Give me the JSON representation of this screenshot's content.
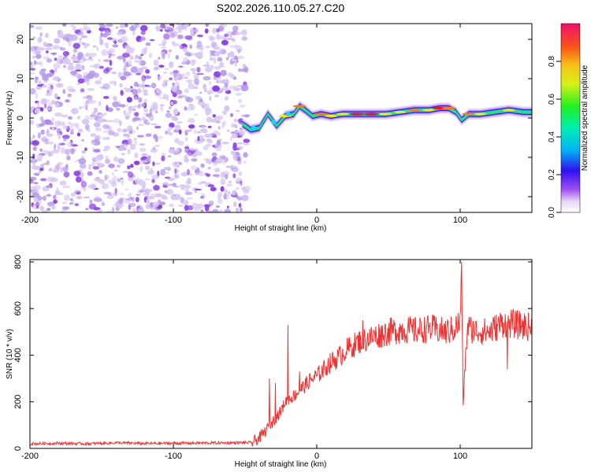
{
  "title": "S202.2026.110.05.27.C20",
  "colors": {
    "snr_line": "#ee3333",
    "scatter_light": "#d9c8f2",
    "scatter_mid": "#b79be9",
    "scatter_dark": "#8a3fe0",
    "band_colors": [
      "#e4d2f7",
      "#b890ef",
      "#3a10e6",
      "#12d7f2",
      "#2be84a",
      "#f3e324",
      "#f07e1a",
      "#e81717"
    ]
  },
  "chart_data": [
    {
      "type": "heatmap",
      "title": "S202.2026.110.05.27.C20",
      "xlabel": "Height of straight line (km)",
      "ylabel": "Frequency (Hz)",
      "xlim": [
        -200,
        150
      ],
      "ylim": [
        -24,
        24
      ],
      "xticks": [
        -200,
        -100,
        0,
        100
      ],
      "yticks": [
        -20,
        -10,
        0,
        10,
        20
      ],
      "noise_region": {
        "x_from": -200,
        "x_to": -48,
        "frequency_range": [
          -24,
          24
        ]
      },
      "signal_band": [
        {
          "x": -52,
          "frequency": -1.5,
          "amplitude": 0.2
        },
        {
          "x": -46,
          "frequency": -3.0,
          "amplitude": 0.35
        },
        {
          "x": -40,
          "frequency": -2.5,
          "amplitude": 0.3
        },
        {
          "x": -34,
          "frequency": 1.0,
          "amplitude": 0.25
        },
        {
          "x": -28,
          "frequency": -2.0,
          "amplitude": 0.3
        },
        {
          "x": -22,
          "frequency": 0.5,
          "amplitude": 0.7
        },
        {
          "x": -16,
          "frequency": 1.0,
          "amplitude": 0.45
        },
        {
          "x": -12,
          "frequency": 3.0,
          "amplitude": 0.75
        },
        {
          "x": -8,
          "frequency": 2.0,
          "amplitude": 0.5
        },
        {
          "x": -3,
          "frequency": 0.5,
          "amplitude": 0.55
        },
        {
          "x": 3,
          "frequency": 1.0,
          "amplitude": 0.85
        },
        {
          "x": 10,
          "frequency": 0.5,
          "amplitude": 0.65
        },
        {
          "x": 18,
          "frequency": 1.0,
          "amplitude": 0.6
        },
        {
          "x": 28,
          "frequency": 1.0,
          "amplitude": 0.9
        },
        {
          "x": 38,
          "frequency": 1.0,
          "amplitude": 0.95
        },
        {
          "x": 48,
          "frequency": 1.0,
          "amplitude": 0.7
        },
        {
          "x": 58,
          "frequency": 1.5,
          "amplitude": 0.6
        },
        {
          "x": 68,
          "frequency": 2.0,
          "amplitude": 0.8
        },
        {
          "x": 78,
          "frequency": 2.0,
          "amplitude": 0.65
        },
        {
          "x": 86,
          "frequency": 2.5,
          "amplitude": 0.95
        },
        {
          "x": 92,
          "frequency": 2.5,
          "amplitude": 0.85
        },
        {
          "x": 97,
          "frequency": 1.5,
          "amplitude": 0.55
        },
        {
          "x": 101,
          "frequency": -0.5,
          "amplitude": 0.4
        },
        {
          "x": 106,
          "frequency": 1.0,
          "amplitude": 0.75
        },
        {
          "x": 114,
          "frequency": 1.0,
          "amplitude": 0.6
        },
        {
          "x": 124,
          "frequency": 1.5,
          "amplitude": 0.55
        },
        {
          "x": 134,
          "frequency": 2.0,
          "amplitude": 0.65
        },
        {
          "x": 144,
          "frequency": 1.5,
          "amplitude": 0.55
        },
        {
          "x": 150,
          "frequency": 1.5,
          "amplitude": 0.5
        }
      ],
      "colorbar": {
        "label": "Normalized spectral amplitude",
        "range": [
          0,
          1
        ],
        "ticks": [
          "0.0",
          "0.2",
          "0.4",
          "0.6",
          "0.8"
        ],
        "tick_values": [
          0,
          0.2,
          0.4,
          0.6,
          0.8
        ]
      }
    },
    {
      "type": "line",
      "xlabel": "Height of straight line (km)",
      "ylabel": "SNR (10 * v/v)",
      "xlim": [
        -200,
        150
      ],
      "ylim": [
        0,
        810
      ],
      "xticks": [
        -200,
        -100,
        0,
        100
      ],
      "yticks": [
        0,
        200,
        400,
        600,
        800
      ],
      "series": [
        {
          "name": "SNR",
          "x": [
            -200,
            -180,
            -160,
            -140,
            -120,
            -100,
            -80,
            -60,
            -45,
            -40,
            -35,
            -30,
            -25,
            -22,
            -20,
            -15,
            -10,
            -5,
            0,
            5,
            10,
            15,
            20,
            25,
            30,
            35,
            40,
            50,
            60,
            70,
            80,
            90,
            95,
            100,
            101,
            102,
            105,
            110,
            120,
            130,
            140,
            150
          ],
          "y": [
            20,
            22,
            20,
            24,
            21,
            22,
            23,
            24,
            25,
            45,
            80,
            120,
            160,
            200,
            210,
            230,
            260,
            290,
            310,
            340,
            370,
            390,
            420,
            440,
            460,
            470,
            480,
            500,
            510,
            505,
            515,
            500,
            510,
            540,
            800,
            200,
            520,
            505,
            500,
            540,
            530,
            520
          ]
        }
      ],
      "spikes": [
        {
          "x": -33,
          "y": 300
        },
        {
          "x": -29,
          "y": 280
        },
        {
          "x": -20,
          "y": 530
        },
        {
          "x": -12,
          "y": 330
        },
        {
          "x": 32,
          "y": 550
        },
        {
          "x": 101,
          "y": 800
        },
        {
          "x": 102,
          "y": 185
        },
        {
          "x": 133,
          "y": 340
        }
      ]
    }
  ]
}
